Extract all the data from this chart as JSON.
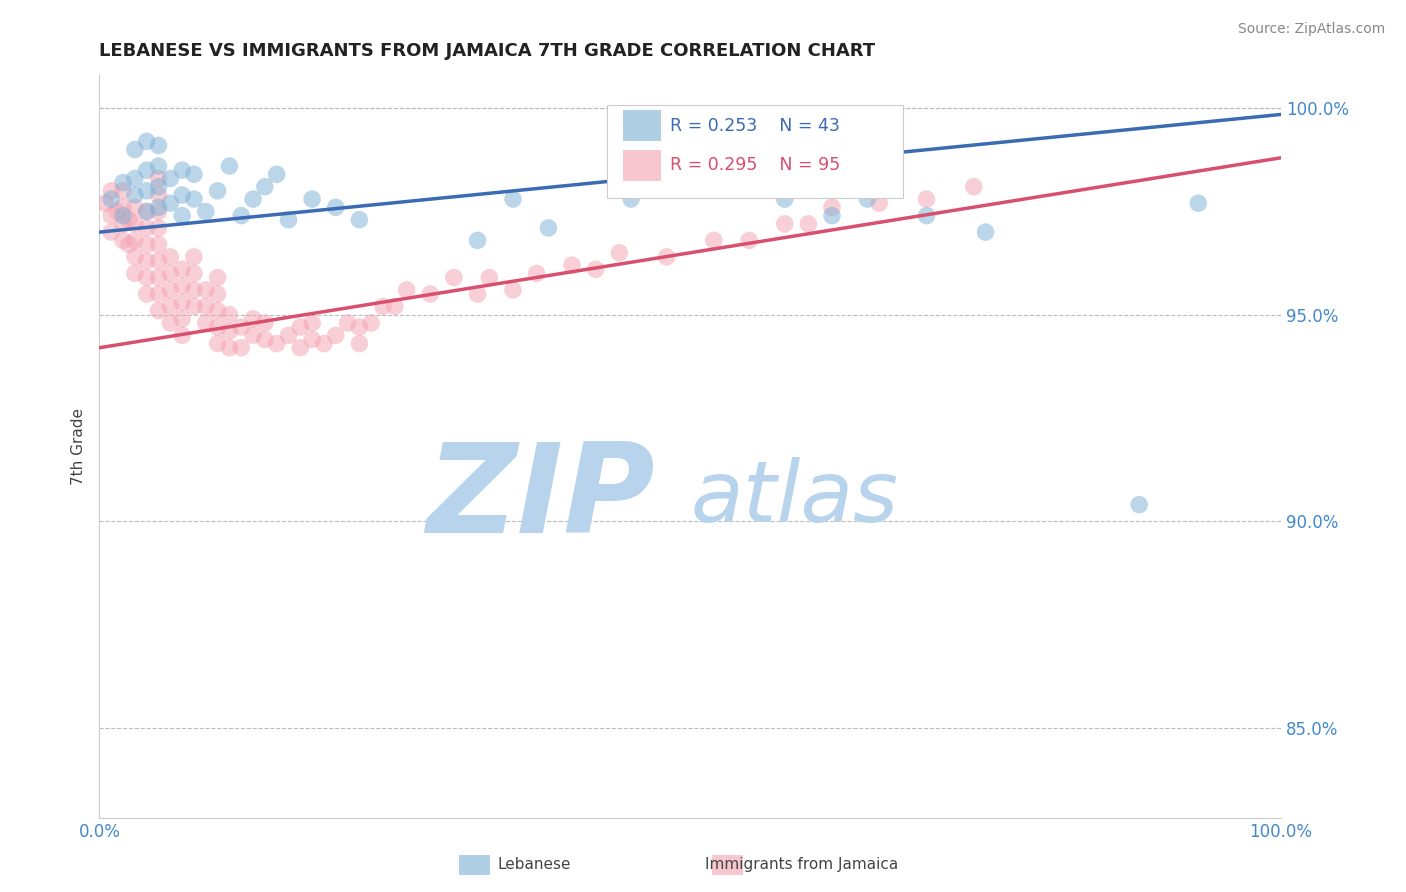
{
  "title": "LEBANESE VS IMMIGRANTS FROM JAMAICA 7TH GRADE CORRELATION CHART",
  "source_text": "Source: ZipAtlas.com",
  "xlabel": "",
  "ylabel": "7th Grade",
  "xlim": [
    0.0,
    1.0
  ],
  "ylim": [
    0.828,
    1.008
  ],
  "yticks": [
    0.85,
    0.9,
    0.95,
    1.0
  ],
  "ytick_labels": [
    "85.0%",
    "90.0%",
    "95.0%",
    "100.0%"
  ],
  "xticks": [
    0.0,
    0.25,
    0.5,
    0.75,
    1.0
  ],
  "xtick_labels": [
    "0.0%",
    "",
    "",
    "",
    "100.0%"
  ],
  "legend_blue_label": "Lebanese",
  "legend_pink_label": "Immigrants from Jamaica",
  "blue_R": 0.253,
  "blue_N": 43,
  "pink_R": 0.295,
  "pink_N": 95,
  "blue_color": "#7BAFD4",
  "pink_color": "#F4A0B0",
  "blue_line_color": "#3B6BB5",
  "pink_line_color": "#D94F6E",
  "watermark_zip": "ZIP",
  "watermark_atlas": "atlas",
  "watermark_color_zip": "#B8D4EC",
  "watermark_color_atlas": "#B8D4EC",
  "background_color": "#FFFFFF",
  "grid_color": "#BBBBBB",
  "blue_line_x0": 0.0,
  "blue_line_x1": 1.0,
  "blue_line_y0": 0.97,
  "blue_line_y1": 0.9985,
  "pink_line_x0": 0.0,
  "pink_line_x1": 1.0,
  "pink_line_y0": 0.942,
  "pink_line_y1": 0.988,
  "blue_scatter_x": [
    0.01,
    0.02,
    0.02,
    0.03,
    0.03,
    0.03,
    0.04,
    0.04,
    0.04,
    0.04,
    0.05,
    0.05,
    0.05,
    0.05,
    0.06,
    0.06,
    0.07,
    0.07,
    0.07,
    0.08,
    0.08,
    0.09,
    0.1,
    0.11,
    0.12,
    0.13,
    0.14,
    0.15,
    0.16,
    0.18,
    0.2,
    0.22,
    0.32,
    0.35,
    0.38,
    0.45,
    0.58,
    0.62,
    0.65,
    0.7,
    0.75,
    0.88,
    0.93
  ],
  "blue_scatter_y": [
    0.978,
    0.974,
    0.982,
    0.979,
    0.983,
    0.99,
    0.975,
    0.98,
    0.985,
    0.992,
    0.976,
    0.981,
    0.986,
    0.991,
    0.977,
    0.983,
    0.974,
    0.979,
    0.985,
    0.978,
    0.984,
    0.975,
    0.98,
    0.986,
    0.974,
    0.978,
    0.981,
    0.984,
    0.973,
    0.978,
    0.976,
    0.973,
    0.968,
    0.978,
    0.971,
    0.978,
    0.978,
    0.974,
    0.978,
    0.974,
    0.97,
    0.904,
    0.977
  ],
  "pink_scatter_x": [
    0.005,
    0.01,
    0.01,
    0.01,
    0.015,
    0.02,
    0.02,
    0.02,
    0.02,
    0.025,
    0.025,
    0.03,
    0.03,
    0.03,
    0.03,
    0.03,
    0.04,
    0.04,
    0.04,
    0.04,
    0.04,
    0.04,
    0.05,
    0.05,
    0.05,
    0.05,
    0.05,
    0.05,
    0.05,
    0.05,
    0.05,
    0.06,
    0.06,
    0.06,
    0.06,
    0.06,
    0.07,
    0.07,
    0.07,
    0.07,
    0.07,
    0.08,
    0.08,
    0.08,
    0.08,
    0.09,
    0.09,
    0.09,
    0.1,
    0.1,
    0.1,
    0.1,
    0.1,
    0.11,
    0.11,
    0.11,
    0.12,
    0.12,
    0.13,
    0.13,
    0.14,
    0.14,
    0.15,
    0.16,
    0.17,
    0.17,
    0.18,
    0.18,
    0.19,
    0.2,
    0.21,
    0.22,
    0.22,
    0.23,
    0.24,
    0.25,
    0.26,
    0.28,
    0.3,
    0.32,
    0.33,
    0.35,
    0.37,
    0.4,
    0.42,
    0.44,
    0.48,
    0.52,
    0.55,
    0.58,
    0.6,
    0.62,
    0.66,
    0.7,
    0.74
  ],
  "pink_scatter_y": [
    0.977,
    0.97,
    0.974,
    0.98,
    0.975,
    0.968,
    0.972,
    0.976,
    0.98,
    0.967,
    0.973,
    0.96,
    0.964,
    0.968,
    0.972,
    0.976,
    0.955,
    0.959,
    0.963,
    0.967,
    0.971,
    0.975,
    0.951,
    0.955,
    0.959,
    0.963,
    0.967,
    0.971,
    0.975,
    0.979,
    0.983,
    0.948,
    0.952,
    0.956,
    0.96,
    0.964,
    0.945,
    0.949,
    0.953,
    0.957,
    0.961,
    0.952,
    0.956,
    0.96,
    0.964,
    0.948,
    0.952,
    0.956,
    0.943,
    0.947,
    0.951,
    0.955,
    0.959,
    0.942,
    0.946,
    0.95,
    0.942,
    0.947,
    0.945,
    0.949,
    0.944,
    0.948,
    0.943,
    0.945,
    0.942,
    0.947,
    0.944,
    0.948,
    0.943,
    0.945,
    0.948,
    0.943,
    0.947,
    0.948,
    0.952,
    0.952,
    0.956,
    0.955,
    0.959,
    0.955,
    0.959,
    0.956,
    0.96,
    0.962,
    0.961,
    0.965,
    0.964,
    0.968,
    0.968,
    0.972,
    0.972,
    0.976,
    0.977,
    0.978,
    0.981
  ]
}
